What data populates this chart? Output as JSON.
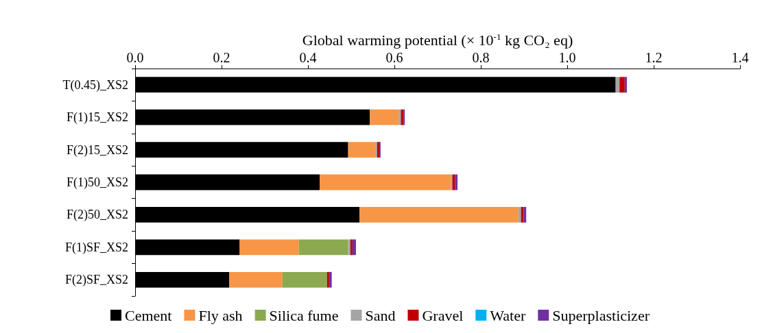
{
  "chart_data": {
    "type": "bar",
    "orientation": "horizontal",
    "stacked": true,
    "xlabel": "Global warming potential (× 10$^{-1}$ kg CO₂ eq)",
    "categories": [
      "T(0.45)_XS2",
      "F(1)15_XS2",
      "F(2)15_XS2",
      "F(1)50_XS2",
      "F(2)50_XS2",
      "F(1)SF_XS2",
      "F(2)SF_XS2"
    ],
    "series": [
      {
        "name": "Cement",
        "color": "#000000",
        "values": [
          1.112,
          0.543,
          0.493,
          0.427,
          0.519,
          0.242,
          0.218
        ]
      },
      {
        "name": "Fly ash",
        "color": "#f79646",
        "values": [
          0,
          0.067,
          0.064,
          0.304,
          0.368,
          0.137,
          0.123
        ]
      },
      {
        "name": "Silica fume",
        "color": "#8ba94f",
        "values": [
          0,
          0,
          0,
          0,
          0,
          0.114,
          0.103
        ]
      },
      {
        "name": "Sand",
        "color": "#a5a5a5",
        "values": [
          0.009,
          0.005,
          0.003,
          0.003,
          0.006,
          0.005,
          null
        ]
      },
      {
        "name": "Gravel",
        "color": "#c00000",
        "values": [
          0.012,
          0.006,
          0.005,
          0.006,
          0.006,
          0.005,
          0.005
        ]
      },
      {
        "name": "Water",
        "color": "#00b0f0",
        "values": [
          0,
          0,
          0,
          0,
          0,
          0,
          0
        ]
      },
      {
        "name": "Superplasticizer",
        "color": "#7030a0",
        "values": [
          0.005,
          0.003,
          0.003,
          0.006,
          0.006,
          0.008,
          0.006
        ]
      }
    ],
    "xlim": [
      0,
      1.4
    ],
    "xticks": [
      {
        "value": 0,
        "label": "0.0"
      },
      {
        "value": 0.2,
        "label": "0.2"
      },
      {
        "value": 0.4,
        "label": "0.4"
      },
      {
        "value": 0.6,
        "label": "0.6"
      },
      {
        "value": 0.8,
        "label": "0.8"
      },
      {
        "value": 1.0,
        "label": "1.0"
      },
      {
        "value": 1.2,
        "label": "1.2"
      },
      {
        "value": 1.4,
        "label": "1.4"
      }
    ],
    "grid": false,
    "legend": "bottom"
  }
}
